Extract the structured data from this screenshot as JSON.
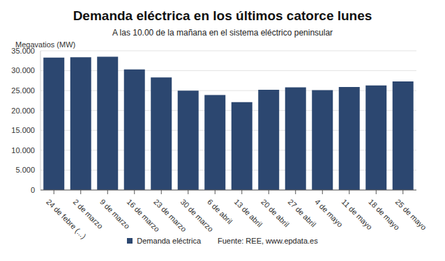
{
  "chart_data": {
    "type": "bar",
    "title": "Demanda eléctrica en los últimos catorce lunes",
    "subtitle": "A las 10.00 de la mañana en el sistema eléctrico peninsular",
    "y_label": "Megavatios (MW)",
    "source": "Fuente: REE, www.epdata.es",
    "categories": [
      "24 de febre (...)",
      "2 de marzo",
      "9 de marzo",
      "16 de marzo",
      "23 de marzo",
      "30 de marzo",
      "6 de abril",
      "13 de abril",
      "20 de abril",
      "27 de abril",
      "4 de mayo",
      "11 de mayo",
      "18 de mayo",
      "25 de mayo"
    ],
    "series": [
      {
        "name": "Demanda eléctrica",
        "color": "#2c4770",
        "values": [
          33300,
          33400,
          33500,
          30300,
          28300,
          25000,
          23900,
          22100,
          25200,
          25800,
          25100,
          25900,
          26300,
          27300
        ]
      }
    ],
    "ylim": [
      0,
      35000
    ],
    "yticks": [
      {
        "value": 0,
        "label": "0"
      },
      {
        "value": 5000,
        "label": "5.000"
      },
      {
        "value": 10000,
        "label": "10.000"
      },
      {
        "value": 15000,
        "label": "15.000"
      },
      {
        "value": 20000,
        "label": "20.000"
      },
      {
        "value": 25000,
        "label": "25.000"
      },
      {
        "value": 30000,
        "label": "30.000"
      },
      {
        "value": 35000,
        "label": "35.000"
      }
    ],
    "grid": true,
    "legend": "bottom"
  }
}
